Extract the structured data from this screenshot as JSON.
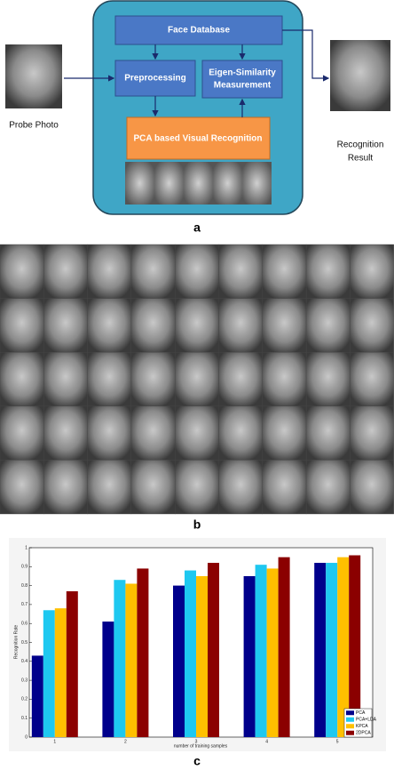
{
  "panel_labels": [
    "a",
    "b",
    "c"
  ],
  "diagram": {
    "face_database": "Face Database",
    "preprocessing": "Preprocessing",
    "eigen_similarity": [
      "Eigen-Similarity",
      "Measurement"
    ],
    "pca_recognition": "PCA based Visual Recognition",
    "probe_photo": "Probe Photo",
    "recognition_result": [
      "Recognition",
      "Result"
    ]
  },
  "chart_data": {
    "type": "bar",
    "x_label": "number of training samples",
    "y_label": "Recognition Rate",
    "categories": [
      "1",
      "2",
      "3",
      "4",
      "5"
    ],
    "series": [
      {
        "name": "PCA",
        "color": "#00008b",
        "values": [
          0.43,
          0.61,
          0.8,
          0.85,
          0.92
        ]
      },
      {
        "name": "PCA+LDA",
        "color": "#1ec8f0",
        "values": [
          0.67,
          0.83,
          0.88,
          0.91,
          0.92
        ]
      },
      {
        "name": "KPCA",
        "color": "#ffc000",
        "values": [
          0.68,
          0.81,
          0.85,
          0.89,
          0.95
        ]
      },
      {
        "name": "2DPCA",
        "color": "#8b0000",
        "values": [
          0.77,
          0.89,
          0.92,
          0.95,
          0.96
        ]
      }
    ],
    "ylim": [
      0,
      1
    ],
    "yticks": [
      0,
      0.1,
      0.2,
      0.3,
      0.4,
      0.5,
      0.6,
      0.7,
      0.8,
      0.9,
      1
    ],
    "legend": "lower right"
  }
}
